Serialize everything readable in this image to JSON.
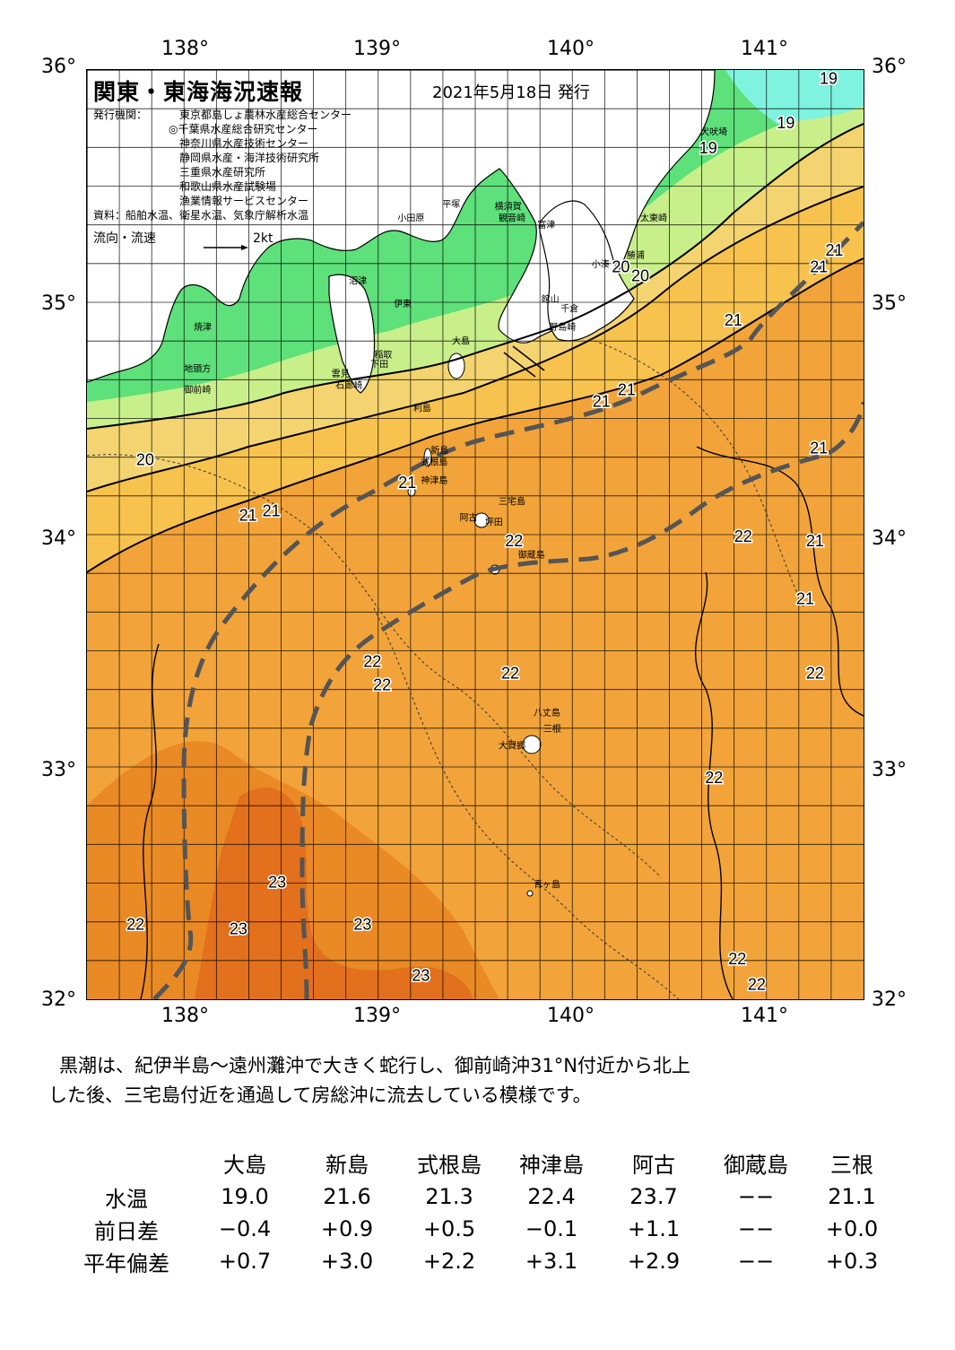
{
  "map": {
    "title": "関東・東海海況速報",
    "date": "2021年5月18日 発行",
    "publisher_label": "発行機関：",
    "publishers": [
      "東京都島しょ農林水産総合センター",
      "◎千葉県水産総合研究センター",
      "神奈川県水産技術センター",
      "静岡県水産・海洋技術研究所",
      "三重県水産研究所",
      "和歌山県水産試験場",
      "漁業情報サービスセンター"
    ],
    "source": "資料：船舶水温、衛星水温、気象庁解析水温",
    "legend_flow": "流向・流速",
    "legend_speed": "2kt",
    "lon_labels": [
      "138°",
      "139°",
      "140°",
      "141°"
    ],
    "lat_labels": [
      "36°",
      "35°",
      "34°",
      "33°",
      "32°"
    ],
    "temp_labels": [
      {
        "t": "19",
        "lon": 141.32,
        "lat": 35.94
      },
      {
        "t": "19",
        "lon": 141.1,
        "lat": 35.75
      },
      {
        "t": "19",
        "lon": 140.7,
        "lat": 35.64
      },
      {
        "t": "20",
        "lon": 140.25,
        "lat": 35.13
      },
      {
        "t": "20",
        "lon": 140.35,
        "lat": 35.09
      },
      {
        "t": "21",
        "lon": 141.35,
        "lat": 35.2
      },
      {
        "t": "21",
        "lon": 141.27,
        "lat": 35.13
      },
      {
        "t": "21",
        "lon": 140.83,
        "lat": 34.9
      },
      {
        "t": "21",
        "lon": 140.15,
        "lat": 34.55
      },
      {
        "t": "21",
        "lon": 140.28,
        "lat": 34.6
      },
      {
        "t": "21",
        "lon": 141.27,
        "lat": 34.35
      },
      {
        "t": "21",
        "lon": 139.15,
        "lat": 34.2
      },
      {
        "t": "21",
        "lon": 138.33,
        "lat": 34.06
      },
      {
        "t": "21",
        "lon": 138.45,
        "lat": 34.08
      },
      {
        "t": "21",
        "lon": 141.25,
        "lat": 33.95
      },
      {
        "t": "21",
        "lon": 141.2,
        "lat": 33.7
      },
      {
        "t": "20",
        "lon": 137.8,
        "lat": 34.3
      },
      {
        "t": "22",
        "lon": 139.7,
        "lat": 33.95
      },
      {
        "t": "22",
        "lon": 140.88,
        "lat": 33.97
      },
      {
        "t": "22",
        "lon": 141.25,
        "lat": 33.38
      },
      {
        "t": "22",
        "lon": 138.97,
        "lat": 33.43
      },
      {
        "t": "22",
        "lon": 139.02,
        "lat": 33.33
      },
      {
        "t": "22",
        "lon": 139.68,
        "lat": 33.38
      },
      {
        "t": "22",
        "lon": 140.73,
        "lat": 32.93
      },
      {
        "t": "22",
        "lon": 137.75,
        "lat": 32.3
      },
      {
        "t": "22",
        "lon": 140.85,
        "lat": 32.15
      },
      {
        "t": "22",
        "lon": 140.95,
        "lat": 32.04
      },
      {
        "t": "23",
        "lon": 138.48,
        "lat": 32.48
      },
      {
        "t": "23",
        "lon": 138.28,
        "lat": 32.28
      },
      {
        "t": "23",
        "lon": 138.92,
        "lat": 32.3
      },
      {
        "t": "23",
        "lon": 139.22,
        "lat": 32.08
      }
    ],
    "places": [
      {
        "t": "犬吠埼",
        "lon": 140.66,
        "lat": 35.72
      },
      {
        "t": "太東崎",
        "lon": 140.35,
        "lat": 35.35
      },
      {
        "t": "勝浦",
        "lon": 140.28,
        "lat": 35.19
      },
      {
        "t": "小湊",
        "lon": 140.1,
        "lat": 35.15
      },
      {
        "t": "富津",
        "lon": 139.82,
        "lat": 35.32
      },
      {
        "t": "横須賀",
        "lon": 139.6,
        "lat": 35.4
      },
      {
        "t": "観音崎",
        "lon": 139.62,
        "lat": 35.35
      },
      {
        "t": "平塚",
        "lon": 139.33,
        "lat": 35.41
      },
      {
        "t": "小田原",
        "lon": 139.1,
        "lat": 35.35
      },
      {
        "t": "館山",
        "lon": 139.84,
        "lat": 35.0
      },
      {
        "t": "千倉",
        "lon": 139.94,
        "lat": 34.96
      },
      {
        "t": "野島崎",
        "lon": 139.88,
        "lat": 34.88
      },
      {
        "t": "沼津",
        "lon": 138.85,
        "lat": 35.08
      },
      {
        "t": "伊東",
        "lon": 139.08,
        "lat": 34.98
      },
      {
        "t": "大島",
        "lon": 139.38,
        "lat": 34.82
      },
      {
        "t": "稲取",
        "lon": 138.98,
        "lat": 34.76
      },
      {
        "t": "下田",
        "lon": 138.96,
        "lat": 34.72
      },
      {
        "t": "雲見",
        "lon": 138.76,
        "lat": 34.68
      },
      {
        "t": "石廊崎",
        "lon": 138.78,
        "lat": 34.63
      },
      {
        "t": "焼津",
        "lon": 138.05,
        "lat": 34.88
      },
      {
        "t": "地頭方",
        "lon": 138.0,
        "lat": 34.7
      },
      {
        "t": "御前崎",
        "lon": 138.0,
        "lat": 34.61
      },
      {
        "t": "利島",
        "lon": 139.18,
        "lat": 34.53
      },
      {
        "t": "新島",
        "lon": 139.27,
        "lat": 34.35
      },
      {
        "t": "式根島",
        "lon": 139.22,
        "lat": 34.3
      },
      {
        "t": "神津島",
        "lon": 139.22,
        "lat": 34.22
      },
      {
        "t": "三宅島",
        "lon": 139.62,
        "lat": 34.13
      },
      {
        "t": "阿古",
        "lon": 139.42,
        "lat": 34.06
      },
      {
        "t": "坪田",
        "lon": 139.55,
        "lat": 34.04
      },
      {
        "t": "御蔵島",
        "lon": 139.72,
        "lat": 33.9
      },
      {
        "t": "八丈島",
        "lon": 139.8,
        "lat": 33.22
      },
      {
        "t": "三根",
        "lon": 139.85,
        "lat": 33.15
      },
      {
        "t": "大賀郷",
        "lon": 139.62,
        "lat": 33.08
      },
      {
        "t": "青ヶ島",
        "lon": 139.8,
        "lat": 32.48
      }
    ]
  },
  "summary": {
    "line1": "黒潮は、紀伊半島～遠州灘沖で大きく蛇行し、御前崎沖31°N付近から北上",
    "line2": "した後、三宅島付近を通過して房総沖に流去している模様です。"
  },
  "table": {
    "stations": [
      "大島",
      "新島",
      "式根島",
      "神津島",
      "阿古",
      "御蔵島",
      "三根"
    ],
    "rows": [
      {
        "label": "水温",
        "values": [
          "19.0",
          "21.6",
          "21.3",
          "22.4",
          "23.7",
          "−−",
          "21.1"
        ]
      },
      {
        "label": "前日差",
        "values": [
          "−0.4",
          "+0.9",
          "+0.5",
          "−0.1",
          "+1.1",
          "−−",
          "+0.0"
        ]
      },
      {
        "label": "平年偏差",
        "values": [
          "+0.7",
          "+3.0",
          "+2.2",
          "+3.1",
          "+2.9",
          "−−",
          "+0.3"
        ]
      }
    ]
  },
  "colors": {
    "t19": "#5ee07a",
    "t20": "#c8ef8a",
    "t21": "#f4d470",
    "t21b": "#f7c24e",
    "t22": "#f2a43a",
    "t23": "#ea8a24",
    "t24": "#e2701c",
    "land": "#ffffff",
    "kuroshio": "#555555",
    "cold": "#7ff3e0"
  }
}
